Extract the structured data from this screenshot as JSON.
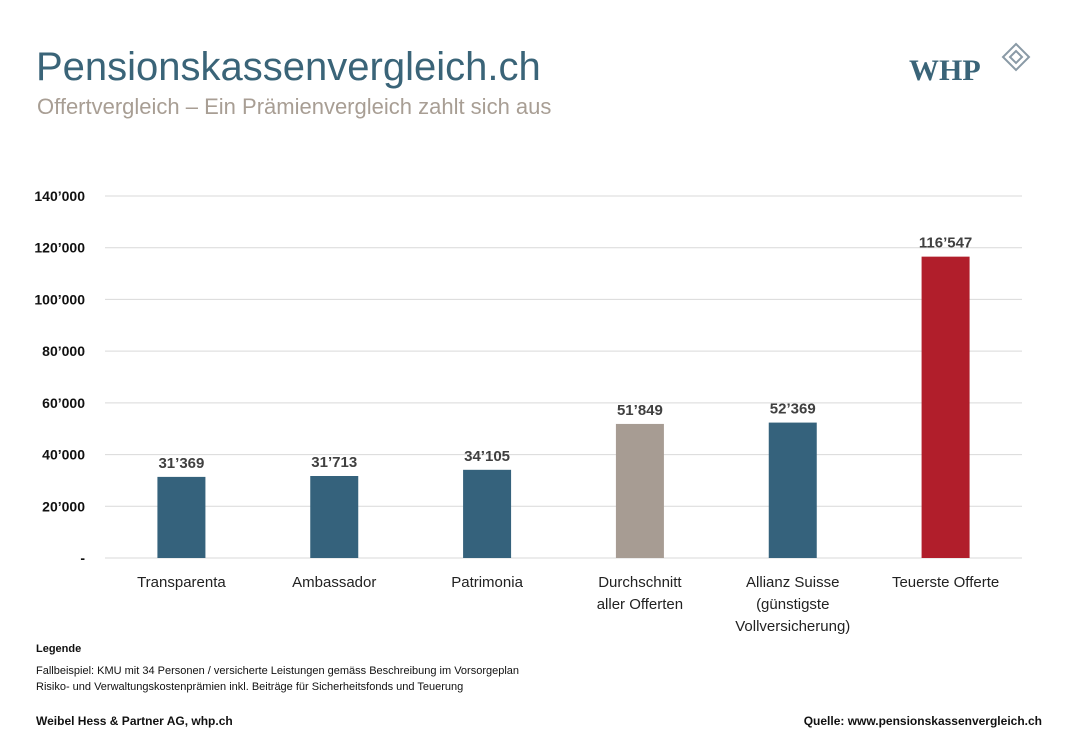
{
  "header": {
    "title": "Pensionskassenvergleich.ch",
    "subtitle": "Offertvergleich – Ein Prämienvergleich zahlt sich aus",
    "logo": "WHP"
  },
  "chart_data": {
    "type": "bar",
    "categories": [
      [
        "Transparenta"
      ],
      [
        "Ambassador"
      ],
      [
        "Patrimonia"
      ],
      [
        "Durchschnitt",
        "aller Offerten"
      ],
      [
        "Allianz Suisse",
        "(günstigste",
        "Vollversicherung)"
      ],
      [
        "Teuerste Offerte"
      ]
    ],
    "values": [
      31369,
      31713,
      34105,
      51849,
      52369,
      116547
    ],
    "value_labels": [
      "31’369",
      "31’713",
      "34’105",
      "51’849",
      "52’369",
      "116’547"
    ],
    "colors": [
      "#35627c",
      "#35627c",
      "#35627c",
      "#a79c93",
      "#35627c",
      "#b11e2b"
    ],
    "ylim": [
      0,
      140000
    ],
    "yticks": [
      {
        "value": 0,
        "label": "-"
      },
      {
        "value": 20000,
        "label": "20’000"
      },
      {
        "value": 40000,
        "label": "40’000"
      },
      {
        "value": 60000,
        "label": "60’000"
      },
      {
        "value": 80000,
        "label": "80’000"
      },
      {
        "value": 100000,
        "label": "100’000"
      },
      {
        "value": 120000,
        "label": "120’000"
      },
      {
        "value": 140000,
        "label": "140’000"
      }
    ],
    "grid": true
  },
  "legend_notes": {
    "heading": "Legende",
    "lines": [
      "Fallbeispiel: KMU mit 34 Personen / versicherte Leistungen gemäss Beschreibung im Vorsorgeplan",
      "Risiko- und Verwaltungskostenprämien inkl. Beiträge für Sicherheitsfonds und Teuerung"
    ]
  },
  "footer": {
    "left": "Weibel Hess & Partner AG, whp.ch",
    "right": "Quelle: www.pensionskassenvergleich.ch"
  }
}
